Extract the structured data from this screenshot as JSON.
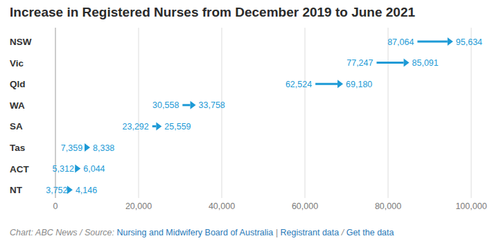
{
  "chart_data": {
    "type": "arrow",
    "orientation": "horizontal",
    "title": "Increase in Registered Nurses from December 2019 to June 2021",
    "categories": [
      "NSW",
      "Vic",
      "Qld",
      "WA",
      "SA",
      "Tas",
      "ACT",
      "NT"
    ],
    "series": [
      {
        "values": [
          87064,
          77247,
          62524,
          30558,
          23292,
          7359,
          5312,
          3752
        ],
        "value_labels": [
          "87,064",
          "77,247",
          "62,524",
          "30,558",
          "23,292",
          "7,359",
          "5,312",
          "3,752"
        ]
      },
      {
        "values": [
          95634,
          85091,
          69180,
          33758,
          25559,
          8338,
          6044,
          4146
        ],
        "value_labels": [
          "95,634",
          "85,091",
          "69,180",
          "33,758",
          "25,559",
          "8,338",
          "6,044",
          "4,146"
        ]
      }
    ],
    "color": "#1d9ad6",
    "data_labels": true,
    "grid": true,
    "xlim": [
      0,
      100000
    ],
    "xticks": [
      0,
      {
        "value": 20000,
        "label": "20,000"
      },
      {
        "value": 40000,
        "label": "40,000"
      },
      {
        "value": 60000,
        "label": "60,000"
      },
      {
        "value": 80000,
        "label": "80,000"
      },
      {
        "value": 100000,
        "label": "100,000"
      }
    ],
    "source_parts": [
      "Chart: ABC News / Source: ",
      "Nursing and Midwifery Board of Australia",
      " | ",
      "Registrant data",
      " / ",
      "Get the data"
    ]
  }
}
